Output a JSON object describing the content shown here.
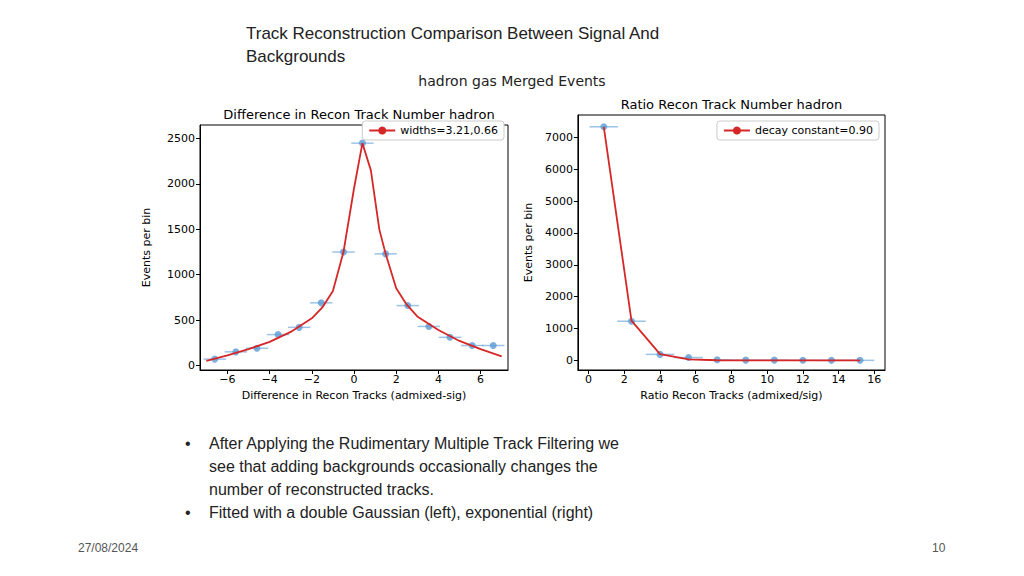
{
  "slide": {
    "title": "Track Reconstruction Comparison Between Signal And Backgrounds",
    "subtitle": "hadron gas Merged Events",
    "bullets": [
      "After Applying the Rudimentary Multiple Track Filtering we see that adding backgrounds occasionally changes the number of reconstructed tracks.",
      "Fitted with a double Gaussian (left), exponential (right)"
    ],
    "date": "27/08/2024",
    "page": 10
  },
  "chart_data": [
    {
      "type": "scatter",
      "title": "Difference in Recon Track Number hadron",
      "xlabel": "Difference in Recon Tracks (admixed-sig)",
      "ylabel": "Events per bin",
      "xlim": [
        -7.3,
        7.3
      ],
      "xticks": [
        {
          "value": -6,
          "label": "−6"
        },
        {
          "value": -4,
          "label": "−4"
        },
        {
          "value": -2,
          "label": "−2"
        },
        0,
        2,
        4,
        6
      ],
      "ylim": [
        -50,
        2650
      ],
      "yticks": [
        0,
        500,
        1000,
        1500,
        2000,
        2500
      ],
      "grid": false,
      "legend": "upper right",
      "series": [
        {
          "type": "scatter",
          "color": "#5b9bd5",
          "marker": "circle",
          "x": [
            -6.6,
            -5.6,
            -4.6,
            -3.6,
            -2.6,
            -1.55,
            -0.5,
            0.4,
            1.5,
            2.55,
            3.55,
            4.55,
            5.6,
            6.6
          ],
          "values": [
            70,
            150,
            190,
            340,
            420,
            690,
            1250,
            2450,
            1230,
            660,
            430,
            310,
            220,
            220
          ],
          "xerr": [
            0.53,
            0.53,
            0.53,
            0.53,
            0.53,
            0.53,
            0.53,
            0.53,
            0.53,
            0.53,
            0.53,
            0.53,
            0.53,
            0.53
          ]
        },
        {
          "type": "line",
          "name": "widths=3.21,0.66",
          "color": "#d62728",
          "line_style": "solid",
          "x": [
            -7,
            -6,
            -5,
            -4,
            -3,
            -2,
            -1.5,
            -1,
            -0.5,
            0,
            0.4,
            0.8,
            1.2,
            1.5,
            2,
            2.5,
            3,
            4,
            5,
            6,
            7
          ],
          "values": [
            50,
            110,
            180,
            260,
            370,
            520,
            640,
            820,
            1250,
            1950,
            2450,
            2150,
            1500,
            1230,
            850,
            670,
            540,
            390,
            270,
            180,
            100
          ]
        }
      ]
    },
    {
      "type": "scatter",
      "title": "Ratio Recon Track Number hadron",
      "xlabel": "Ratio Recon Tracks (admixed/sig)",
      "ylabel": "Events per bin",
      "xlim": [
        -0.6,
        16.6
      ],
      "xticks": [
        0,
        2,
        4,
        6,
        8,
        10,
        12,
        14,
        16
      ],
      "ylim": [
        -300,
        7700
      ],
      "yticks": [
        0,
        1000,
        2000,
        3000,
        4000,
        5000,
        6000,
        7000
      ],
      "grid": false,
      "legend": "upper right",
      "series": [
        {
          "type": "scatter",
          "color": "#5b9bd5",
          "marker": "circle",
          "x": [
            0.85,
            2.4,
            4.0,
            5.6,
            7.2,
            8.8,
            10.4,
            12.0,
            13.6,
            15.2
          ],
          "values": [
            7330,
            1230,
            190,
            90,
            20,
            10,
            10,
            5,
            3,
            3
          ],
          "xerr": [
            0.8,
            0.8,
            0.8,
            0.8,
            0.8,
            0.8,
            0.8,
            0.8,
            0.8,
            0.8
          ]
        },
        {
          "type": "line",
          "name": "decay constant=0.90",
          "color": "#d62728",
          "line_style": "solid",
          "x": [
            0.85,
            2.4,
            4.0,
            5.6,
            7.2,
            8.8,
            10.4,
            12.0,
            13.6,
            15.2
          ],
          "values": [
            7330,
            1250,
            200,
            35,
            6,
            1,
            0,
            0,
            0,
            0
          ]
        }
      ]
    }
  ]
}
